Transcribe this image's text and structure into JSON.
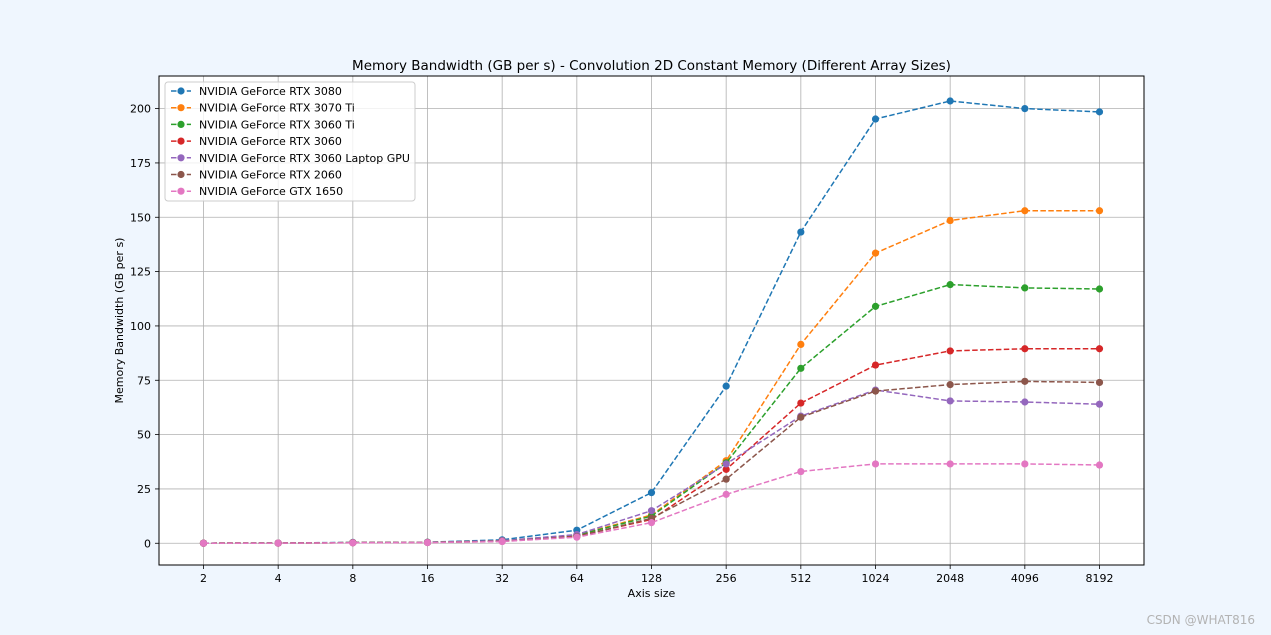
{
  "watermark": "CSDN @WHAT816",
  "chart_data": {
    "type": "line",
    "title": "Memory Bandwidth (GB per s) - Convolution 2D Constant Memory (Different Array Sizes)",
    "xlabel": "Axis size",
    "ylabel": "Memory Bandwidth (GB per s)",
    "categories": [
      "2",
      "4",
      "8",
      "16",
      "32",
      "64",
      "128",
      "256",
      "512",
      "1024",
      "2048",
      "4096",
      "8192"
    ],
    "ylim": [
      -10,
      215
    ],
    "yticks": [
      0,
      25,
      50,
      75,
      100,
      125,
      150,
      175,
      200
    ],
    "grid": true,
    "legend_position": "upper-left",
    "line_style": "dashed",
    "marker": "circle",
    "series": [
      {
        "name": "NVIDIA GeForce RTX 3080",
        "color": "#1f77b4",
        "values": [
          0.02,
          0.1,
          0.4,
          0.5,
          1.6,
          6.0,
          23.3,
          72.3,
          143.2,
          195.2,
          203.5,
          200.0,
          198.5
        ]
      },
      {
        "name": "NVIDIA GeForce RTX 3070 Ti",
        "color": "#ff7f0e",
        "values": [
          0.02,
          0.08,
          0.3,
          0.4,
          1.2,
          3.8,
          13.0,
          38.0,
          91.5,
          133.5,
          148.5,
          153.0,
          153.0
        ]
      },
      {
        "name": "NVIDIA GeForce RTX 3060 Ti",
        "color": "#2ca02c",
        "values": [
          0.02,
          0.08,
          0.3,
          0.4,
          1.1,
          3.6,
          12.5,
          37.0,
          80.5,
          109.0,
          119.0,
          117.5,
          117.0
        ]
      },
      {
        "name": "NVIDIA GeForce RTX 3060",
        "color": "#d62728",
        "values": [
          0.02,
          0.07,
          0.25,
          0.35,
          1.0,
          3.2,
          11.0,
          34.0,
          64.5,
          82.0,
          88.5,
          89.5,
          89.5
        ]
      },
      {
        "name": "NVIDIA GeForce RTX 3060 Laptop GPU",
        "color": "#9467bd",
        "values": [
          0.02,
          0.08,
          0.3,
          0.4,
          1.2,
          4.0,
          15.0,
          36.5,
          58.5,
          70.5,
          65.5,
          65.0,
          64.0
        ]
      },
      {
        "name": "NVIDIA GeForce RTX 2060",
        "color": "#8c564b",
        "values": [
          0.02,
          0.06,
          0.25,
          0.35,
          0.9,
          3.0,
          11.5,
          29.5,
          58.0,
          70.0,
          73.0,
          74.5,
          74.0
        ]
      },
      {
        "name": "NVIDIA GeForce GTX 1650",
        "color": "#e377c2",
        "values": [
          0.01,
          0.05,
          0.2,
          0.3,
          0.8,
          2.8,
          9.5,
          22.5,
          33.0,
          36.5,
          36.5,
          36.5,
          36.0
        ]
      }
    ]
  }
}
